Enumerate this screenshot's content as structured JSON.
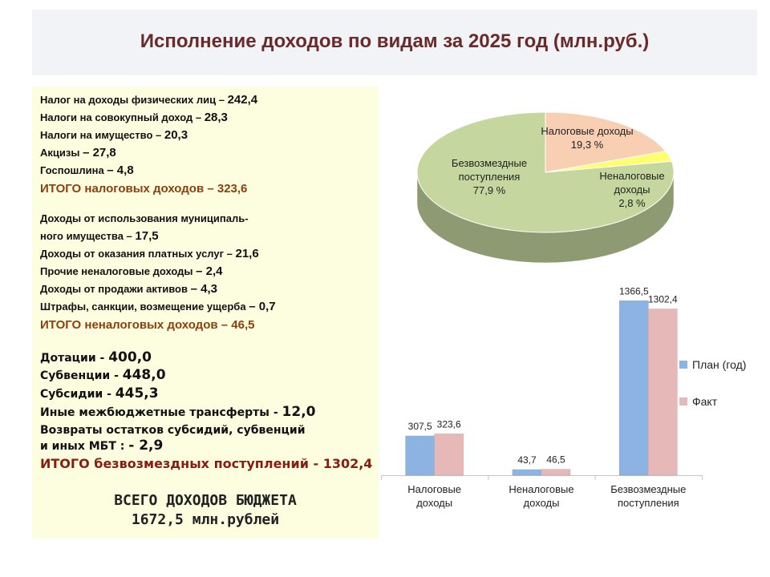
{
  "title": "Исполнение доходов по видам за 2025 год  (млн.руб.)",
  "tax_section": {
    "items": [
      {
        "label": "Налог на доходы физических лиц – ",
        "value": "242,4"
      },
      {
        "label": "Налоги на совокупный доход – ",
        "value": "28,3"
      },
      {
        "label": "Налоги на имущество – ",
        "value": "20,3"
      },
      {
        "label": "Акцизы ",
        "value": "– 27,8"
      },
      {
        "label": "Госпошлина ",
        "value": "– 4,8"
      }
    ],
    "total": "ИТОГО налоговых доходов – 323,6"
  },
  "nontax_section": {
    "items": [
      {
        "label": "Доходы от использования муниципаль-",
        "value": ""
      },
      {
        "label": "ного имущества – ",
        "value": "17,5"
      },
      {
        "label": "Доходы от оказания платных услуг  – ",
        "value": "21,6"
      },
      {
        "label": "Прочие неналоговые доходы ",
        "value": "– 2,4"
      },
      {
        "label": "Доходы от продажи активов ",
        "value": "– 4,3"
      },
      {
        "label": "Штрафы, санкции, возмещение ущерба ",
        "value": "– 0,7"
      }
    ],
    "total": "ИТОГО неналоговых доходов – 46,5"
  },
  "transfer_section": {
    "items": [
      {
        "label": "Дотации - ",
        "value": "400,0"
      },
      {
        "label": "Субвенции - ",
        "value": "448,0"
      },
      {
        "label": "Субсидии - ",
        "value": "445,3"
      },
      {
        "label": "Иные  межбюджетные  трансферты - ",
        "value": "12,0"
      },
      {
        "label": "Возвраты остатков субсидий, субвенций",
        "value": ""
      },
      {
        "label": "и иных МБТ :  ",
        "value": "- 2,9"
      }
    ],
    "total": "ИТОГО безвозмездных поступлений - 1302,4"
  },
  "grand_total": {
    "line1": "ВСЕГО  ДОХОДОВ  БЮДЖЕТА",
    "line2": "1672,5 млн.рублей"
  },
  "colors": {
    "title": "#6b2a2a",
    "panel_bg": "#fdfde0",
    "pie_green": "#c5d79e",
    "pie_peach": "#f8cfb3",
    "pie_yellow": "#ffff70",
    "bar_plan": "#8db3e2",
    "bar_fact": "#e6b9b8"
  },
  "chart_data": [
    {
      "type": "pie",
      "slices": [
        {
          "label_lines": [
            "Налоговые доходы",
            "19,3 %"
          ],
          "value": 19.3,
          "color": "#f8cfb3"
        },
        {
          "label_lines": [
            "Неналоговые",
            "доходы",
            "2,8 %"
          ],
          "value": 2.8,
          "color": "#ffff70"
        },
        {
          "label_lines": [
            "Безвозмездные",
            "поступления",
            "77,9 %"
          ],
          "value": 77.9,
          "color": "#c5d79e"
        }
      ]
    },
    {
      "type": "bar",
      "categories": [
        [
          "Налоговые",
          "доходы"
        ],
        [
          "Неналоговые",
          "доходы"
        ],
        [
          "Безвозмездные",
          "поступления"
        ]
      ],
      "series": [
        {
          "name": "План (год)",
          "values": [
            307.5,
            43.7,
            1366.5
          ],
          "labels": [
            "307,5",
            "43,7",
            "1366,5"
          ],
          "color": "#8db3e2"
        },
        {
          "name": "Факт",
          "values": [
            323.6,
            46.5,
            1302.4
          ],
          "labels": [
            "323,6",
            "46,5",
            "1302,4"
          ],
          "color": "#e6b9b8"
        }
      ],
      "ylim": [
        0,
        1400
      ],
      "legend": "right"
    }
  ]
}
